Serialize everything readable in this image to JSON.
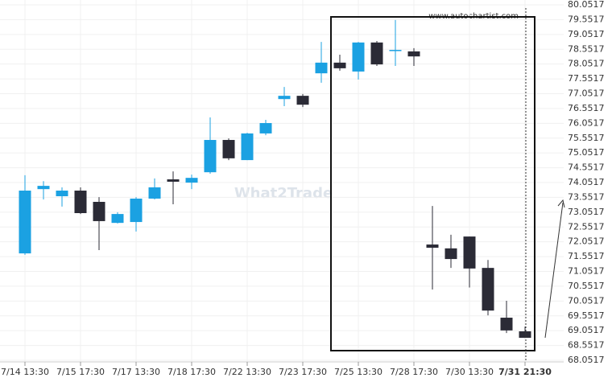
{
  "chart_data": {
    "type": "candlestick",
    "source": "www.autochartist.com",
    "watermark": "What2Trade",
    "categories": [
      "7/14 13:30",
      null,
      null,
      "7/15 17:30",
      null,
      null,
      "7/17 13:30",
      null,
      null,
      "7/18 17:30",
      null,
      null,
      "7/22 13:30",
      null,
      null,
      "7/23 17:30",
      null,
      null,
      "7/25 13:30",
      null,
      null,
      "7/28 17:30",
      null,
      null,
      "7/30 13:30",
      null,
      null,
      "7/31 21:30"
    ],
    "open": [
      71.66,
      73.83,
      73.59,
      73.78,
      73.4,
      72.69,
      72.72,
      73.51,
      74.16,
      74.05,
      74.4,
      75.49,
      74.81,
      75.71,
      76.87,
      76.98,
      77.74,
      78.1,
      77.8,
      78.78,
      78.53,
      78.48,
      71.96,
      71.83,
      72.23,
      71.17,
      69.49,
      69.03
    ],
    "high": [
      74.3,
      74.1,
      73.89,
      73.89,
      73.56,
      73.05,
      73.56,
      74.19,
      74.43,
      74.32,
      76.25,
      75.54,
      75.73,
      76.17,
      77.28,
      77.04,
      78.8,
      78.37,
      78.8,
      78.83,
      79.54,
      78.59,
      73.26,
      72.29,
      72.23,
      71.44,
      70.06,
      69.19
    ],
    "low": [
      71.61,
      73.48,
      73.24,
      72.99,
      71.77,
      72.67,
      72.4,
      73.48,
      73.32,
      73.83,
      74.35,
      74.81,
      74.81,
      75.65,
      76.63,
      76.6,
      77.42,
      77.83,
      77.53,
      77.99,
      77.99,
      77.99,
      70.44,
      71.17,
      70.51,
      69.57,
      68.97,
      68.81
    ],
    "close": [
      73.78,
      73.94,
      73.78,
      73.02,
      72.75,
      72.99,
      73.51,
      73.89,
      74.08,
      74.21,
      75.49,
      74.87,
      75.71,
      76.06,
      76.98,
      76.68,
      78.1,
      77.91,
      78.78,
      78.04,
      78.53,
      78.31,
      71.85,
      71.47,
      71.15,
      69.73,
      69.06,
      68.81
    ],
    "up_color": "#1ba1e2",
    "down_color": "#2b2b36",
    "ylim": [
      68.0517,
      80.0517
    ],
    "yticks": [
      68.0517,
      68.5517,
      69.0517,
      69.5517,
      70.0517,
      70.5517,
      71.0517,
      71.5517,
      72.0517,
      72.5517,
      73.0517,
      73.5517,
      74.0517,
      74.5517,
      75.0517,
      75.5517,
      76.0517,
      76.5517,
      77.0517,
      77.5517,
      78.0517,
      78.5517,
      79.0517,
      79.5517,
      80.0517
    ],
    "grid": true
  }
}
